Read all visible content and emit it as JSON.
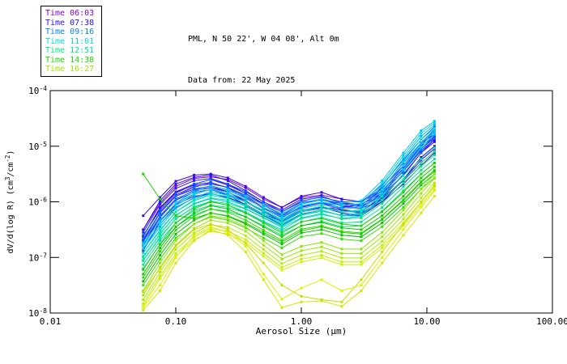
{
  "header": {
    "title_line1": "PML, N 50 22', W 04 08', Alt 0m",
    "title_line2": "Data from: 22 May 2025"
  },
  "legend": {
    "items": [
      {
        "label": "Time 06:03",
        "color": "#8A00C8"
      },
      {
        "label": "Time 07:38",
        "color": "#2A10F0"
      },
      {
        "label": "Time 09:16",
        "color": "#0080FF"
      },
      {
        "label": "Time 11:01",
        "color": "#00D8DC"
      },
      {
        "label": "Time 12:51",
        "color": "#00E88C"
      },
      {
        "label": "Time 14:38",
        "color": "#1ED400"
      },
      {
        "label": "Time 16:27",
        "color": "#9AE800"
      }
    ]
  },
  "chart_data": {
    "type": "line",
    "title": "PML, N 50 22', W 04 08', Alt 0m",
    "subtitle": "Data from: 22 May 2025",
    "xlabel": "Aerosol Size (μm)",
    "ylabel": "dV/d(log R) (cm3/cm-2)",
    "ylabel_parts": [
      {
        "t": "dV/d(log R) (cm"
      },
      {
        "sup": "3"
      },
      {
        "t": "/cm"
      },
      {
        "sup": "-2"
      },
      {
        "t": ")"
      }
    ],
    "x_scale": "log",
    "y_scale": "log",
    "xlim": [
      0.01,
      100.0
    ],
    "ylim": [
      1e-08,
      0.0001
    ],
    "grid": false,
    "legend_position": "top-left",
    "x_ticks": [
      {
        "v": 0.01,
        "label": "0.01"
      },
      {
        "v": 0.1,
        "label": "0.10"
      },
      {
        "v": 1.0,
        "label": "1.00"
      },
      {
        "v": 10.0,
        "label": "10.00"
      },
      {
        "v": 100.0,
        "label": "100.00"
      }
    ],
    "y_tick_exponents": [
      -4,
      -5,
      -6,
      -7,
      -8
    ],
    "x": [
      0.055,
      0.075,
      0.1,
      0.14,
      0.19,
      0.26,
      0.36,
      0.5,
      0.7,
      1.0,
      1.45,
      2.1,
      3.0,
      4.4,
      6.5,
      9.0,
      11.5
    ],
    "series": [
      {
        "time": "06:03",
        "color": "#8A00C8",
        "log10y": [
          -6.5,
          -6.02,
          -5.72,
          -5.58,
          -5.55,
          -5.6,
          -5.75,
          -5.95,
          -6.1,
          -5.92,
          -5.88,
          -5.95,
          -6.0,
          -5.8,
          -5.45,
          -5.05,
          -4.82
        ]
      },
      {
        "time": "06:03",
        "color": "#7A00B8",
        "log10y": [
          -6.62,
          -6.1,
          -5.82,
          -5.68,
          -5.6,
          -5.7,
          -5.85,
          -6.03,
          -6.18,
          -6.0,
          -5.97,
          -6.03,
          -6.08,
          -5.88,
          -5.52,
          -5.12,
          -4.88
        ]
      },
      {
        "time": "06:03",
        "color": "#9000D0",
        "log10y": [
          -6.7,
          -6.18,
          -5.88,
          -5.72,
          -5.68,
          -5.74,
          -5.9,
          -6.1,
          -6.25,
          -6.08,
          -6.02,
          -6.06,
          -6.12,
          -5.95,
          -5.6,
          -5.25,
          -5.05
        ]
      },
      {
        "time": "06:03",
        "color": "#6A00C0",
        "log10y": [
          -6.78,
          -6.25,
          -5.95,
          -5.8,
          -5.75,
          -5.82,
          -5.98,
          -6.18,
          -6.32,
          -6.15,
          -6.1,
          -6.15,
          -6.2,
          -6.0,
          -5.68,
          -5.35,
          -5.12
        ]
      },
      {
        "time": "06:03",
        "color": "#5B00D6",
        "log10y": [
          -6.88,
          -6.35,
          -6.05,
          -5.9,
          -5.85,
          -5.92,
          -6.05,
          -6.22,
          -6.35,
          -6.18,
          -6.12,
          -6.1,
          -6.05,
          -5.85,
          -5.45,
          -5.08,
          -4.88
        ]
      },
      {
        "time": "07:38",
        "color": "#3508F0",
        "log10y": [
          -6.25,
          -5.92,
          -5.63,
          -5.52,
          -5.5,
          -5.57,
          -5.72,
          -5.92,
          -6.1,
          -5.9,
          -5.83,
          -5.95,
          -6.0,
          -5.75,
          -5.35,
          -4.95,
          -4.78
        ]
      },
      {
        "time": "07:38",
        "color": "#2A10F5",
        "log10y": [
          -6.5,
          -5.98,
          -5.68,
          -5.56,
          -5.52,
          -5.62,
          -5.8,
          -6.0,
          -6.15,
          -5.95,
          -5.9,
          -6.02,
          -6.05,
          -5.8,
          -5.4,
          -5.0,
          -4.82
        ]
      },
      {
        "time": "07:38",
        "color": "#1E22FA",
        "log10y": [
          -6.55,
          -6.05,
          -5.76,
          -5.62,
          -5.58,
          -5.68,
          -5.85,
          -6.05,
          -6.22,
          -6.02,
          -5.95,
          -6.08,
          -6.12,
          -5.85,
          -5.45,
          -5.05,
          -4.85
        ]
      },
      {
        "time": "07:38",
        "color": "#3A00E6",
        "log10y": [
          -6.62,
          -6.12,
          -5.83,
          -5.7,
          -5.65,
          -5.75,
          -5.92,
          -6.12,
          -6.28,
          -6.1,
          -6.02,
          -6.14,
          -6.18,
          -5.92,
          -5.52,
          -5.12,
          -4.92
        ]
      },
      {
        "time": "07:38",
        "color": "#2C0AEB",
        "log10y": [
          -6.7,
          -6.2,
          -5.9,
          -5.77,
          -5.72,
          -5.82,
          -6.0,
          -6.18,
          -6.35,
          -6.16,
          -6.1,
          -6.2,
          -6.25,
          -6.0,
          -5.6,
          -5.2,
          -5.0
        ]
      },
      {
        "time": "07:38",
        "color": "#1430F8",
        "log10y": [
          -6.78,
          -6.28,
          -5.97,
          -5.83,
          -5.78,
          -5.88,
          -6.05,
          -6.25,
          -6.4,
          -6.22,
          -6.15,
          -6.25,
          -6.22,
          -5.95,
          -5.62,
          -5.3,
          -5.1
        ]
      },
      {
        "time": "09:16",
        "color": "#0060FF",
        "log10y": [
          -6.6,
          -6.15,
          -5.85,
          -5.68,
          -5.6,
          -5.68,
          -5.82,
          -6.0,
          -6.18,
          -5.98,
          -5.92,
          -6.0,
          -6.0,
          -5.7,
          -5.25,
          -4.88,
          -4.65
        ]
      },
      {
        "time": "09:16",
        "color": "#0070FF",
        "log10y": [
          -6.66,
          -6.2,
          -5.9,
          -5.74,
          -5.66,
          -5.74,
          -5.88,
          -6.06,
          -6.24,
          -6.04,
          -5.96,
          -6.06,
          -6.06,
          -5.76,
          -5.3,
          -4.94,
          -4.7
        ]
      },
      {
        "time": "09:16",
        "color": "#0080FF",
        "log10y": [
          -6.72,
          -6.26,
          -5.96,
          -5.79,
          -5.71,
          -5.79,
          -5.93,
          -6.11,
          -6.29,
          -6.09,
          -6.01,
          -6.11,
          -6.11,
          -5.81,
          -5.36,
          -4.99,
          -4.73
        ]
      },
      {
        "time": "09:16",
        "color": "#0090FF",
        "log10y": [
          -6.78,
          -6.33,
          -6.03,
          -5.86,
          -5.78,
          -5.86,
          -6.0,
          -6.18,
          -6.36,
          -6.16,
          -6.08,
          -6.18,
          -6.18,
          -5.88,
          -5.44,
          -5.06,
          -4.8
        ]
      },
      {
        "time": "09:16",
        "color": "#0668F2",
        "log10y": [
          -6.85,
          -6.4,
          -6.1,
          -5.93,
          -5.85,
          -5.93,
          -6.08,
          -6.25,
          -6.42,
          -6.23,
          -6.15,
          -6.25,
          -6.25,
          -5.95,
          -5.5,
          -5.12,
          -4.86
        ]
      },
      {
        "time": "11:01",
        "color": "#00C8F0",
        "log10y": [
          -6.75,
          -6.35,
          -6.02,
          -5.82,
          -5.72,
          -5.78,
          -5.9,
          -6.05,
          -6.22,
          -6.02,
          -5.95,
          -6.02,
          -5.98,
          -5.62,
          -5.12,
          -4.72,
          -4.55
        ]
      },
      {
        "time": "11:01",
        "color": "#00D4E8",
        "log10y": [
          -6.8,
          -6.4,
          -6.07,
          -5.87,
          -5.77,
          -5.83,
          -5.95,
          -6.1,
          -6.27,
          -6.07,
          -6.0,
          -6.07,
          -6.03,
          -5.67,
          -5.17,
          -4.77,
          -4.58
        ]
      },
      {
        "time": "11:01",
        "color": "#00B8F2",
        "log10y": [
          -6.85,
          -6.45,
          -6.12,
          -5.92,
          -5.82,
          -5.88,
          -6.0,
          -6.15,
          -6.32,
          -6.12,
          -6.05,
          -6.12,
          -6.08,
          -5.72,
          -5.22,
          -4.82,
          -4.62
        ]
      },
      {
        "time": "11:01",
        "color": "#00DCDC",
        "log10y": [
          -6.92,
          -6.52,
          -6.18,
          -5.98,
          -5.88,
          -5.94,
          -6.06,
          -6.22,
          -6.38,
          -6.18,
          -6.11,
          -6.18,
          -6.14,
          -5.78,
          -5.28,
          -4.88,
          -4.68
        ]
      },
      {
        "time": "11:01",
        "color": "#08C0EE",
        "log10y": [
          -6.98,
          -6.58,
          -6.24,
          -6.04,
          -5.94,
          -6.0,
          -6.12,
          -6.28,
          -6.44,
          -6.24,
          -6.17,
          -6.24,
          -6.2,
          -5.84,
          -5.35,
          -4.95,
          -4.72
        ]
      },
      {
        "time": "11:01",
        "color": "#00CCE6",
        "log10y": [
          -7.05,
          -6.65,
          -6.3,
          -6.1,
          -6.0,
          -6.06,
          -6.18,
          -6.35,
          -6.5,
          -6.3,
          -6.23,
          -6.3,
          -6.26,
          -5.9,
          -5.42,
          -5.02,
          -4.78
        ]
      },
      {
        "time": "12:51",
        "color": "#00E6A0",
        "log10y": [
          -6.92,
          -6.5,
          -6.18,
          -5.96,
          -5.86,
          -5.9,
          -6.0,
          -6.16,
          -6.33,
          -6.16,
          -6.08,
          -6.18,
          -6.16,
          -5.9,
          -5.53,
          -5.23,
          -5.03
        ]
      },
      {
        "time": "12:51",
        "color": "#00E88C",
        "log10y": [
          -7.0,
          -6.57,
          -6.25,
          -6.03,
          -5.93,
          -5.97,
          -6.07,
          -6.23,
          -6.4,
          -6.23,
          -6.15,
          -6.25,
          -6.23,
          -5.97,
          -5.6,
          -5.3,
          -5.1
        ]
      },
      {
        "time": "12:51",
        "color": "#00EA78",
        "log10y": [
          -7.06,
          -6.63,
          -6.31,
          -6.09,
          -5.99,
          -6.03,
          -6.13,
          -6.29,
          -6.46,
          -6.29,
          -6.21,
          -6.31,
          -6.29,
          -6.03,
          -5.66,
          -5.36,
          -5.16
        ]
      },
      {
        "time": "12:51",
        "color": "#06DE96",
        "log10y": [
          -7.13,
          -6.7,
          -6.38,
          -6.16,
          -6.06,
          -6.1,
          -6.2,
          -6.36,
          -6.53,
          -6.36,
          -6.28,
          -6.38,
          -6.36,
          -6.1,
          -5.73,
          -5.43,
          -5.23
        ]
      },
      {
        "time": "12:51",
        "color": "#00E070",
        "log10y": [
          -7.2,
          -6.77,
          -6.45,
          -6.23,
          -6.13,
          -6.17,
          -6.27,
          -6.43,
          -6.6,
          -6.43,
          -6.35,
          -6.45,
          -6.43,
          -6.17,
          -5.8,
          -5.5,
          -5.3
        ]
      },
      {
        "time": "14:38",
        "color": "#1ED400",
        "log10y": [
          -7.22,
          -6.76,
          -6.38,
          -6.13,
          -6.0,
          -6.06,
          -6.2,
          -6.38,
          -6.56,
          -6.36,
          -6.3,
          -6.4,
          -6.43,
          -6.18,
          -5.83,
          -5.5,
          -5.3
        ]
      },
      {
        "time": "14:38",
        "color": "#12C800",
        "log10y": [
          -7.3,
          -6.83,
          -6.45,
          -6.2,
          -6.07,
          -6.13,
          -6.27,
          -6.45,
          -6.63,
          -6.43,
          -6.37,
          -6.47,
          -6.5,
          -6.25,
          -5.9,
          -5.57,
          -5.37
        ]
      },
      {
        "time": "14:38",
        "color": "#2ADC00",
        "log10y": [
          -7.36,
          -6.89,
          -6.51,
          -6.26,
          -6.13,
          -6.19,
          -6.33,
          -6.51,
          -6.69,
          -6.49,
          -6.43,
          -6.53,
          -6.56,
          -6.31,
          -5.96,
          -5.63,
          -5.43
        ]
      },
      {
        "time": "14:38",
        "color": "#08BE06",
        "log10y": [
          -7.43,
          -6.96,
          -6.58,
          -6.33,
          -6.2,
          -6.26,
          -6.4,
          -6.58,
          -6.76,
          -6.56,
          -6.5,
          -6.6,
          -6.63,
          -6.38,
          -6.03,
          -5.7,
          -5.5
        ]
      },
      {
        "time": "14:38",
        "color": "#36E000",
        "log10y": [
          -7.5,
          -7.03,
          -6.65,
          -6.4,
          -6.27,
          -6.33,
          -6.47,
          -6.65,
          -6.83,
          -6.63,
          -6.57,
          -6.67,
          -6.7,
          -6.45,
          -6.1,
          -5.77,
          -5.57
        ]
      },
      {
        "time": "14:38",
        "color": "#20CC00",
        "log10y": [
          -5.5,
          -5.95,
          -6.25,
          -6.3,
          -6.2,
          -6.25,
          -6.38,
          -6.55,
          -6.72,
          -6.52,
          -6.45,
          -6.55,
          -6.58,
          -6.32,
          -5.98,
          -5.65,
          -5.45
        ]
      },
      {
        "time": "16:27",
        "color": "#8CE600",
        "log10y": [
          -7.6,
          -7.1,
          -6.7,
          -6.4,
          -6.25,
          -6.3,
          -6.45,
          -6.7,
          -6.95,
          -6.8,
          -6.73,
          -6.85,
          -6.85,
          -6.55,
          -6.15,
          -5.77,
          -5.5
        ]
      },
      {
        "time": "16:27",
        "color": "#9AE800",
        "log10y": [
          -7.68,
          -7.18,
          -6.78,
          -6.48,
          -6.33,
          -6.38,
          -6.53,
          -6.78,
          -7.03,
          -6.88,
          -6.81,
          -6.93,
          -6.93,
          -6.63,
          -6.23,
          -5.85,
          -5.58
        ]
      },
      {
        "time": "16:27",
        "color": "#ACEC00",
        "log10y": [
          -7.76,
          -7.26,
          -6.86,
          -6.56,
          -6.41,
          -6.46,
          -6.61,
          -6.86,
          -7.11,
          -6.96,
          -6.89,
          -7.01,
          -7.01,
          -6.71,
          -6.31,
          -5.93,
          -5.66
        ]
      },
      {
        "time": "16:27",
        "color": "#C0EE00",
        "log10y": [
          -7.83,
          -7.33,
          -6.93,
          -6.63,
          -6.48,
          -6.53,
          -6.68,
          -6.93,
          -7.18,
          -7.03,
          -6.96,
          -7.08,
          -7.08,
          -6.78,
          -6.38,
          -6.0,
          -5.73
        ]
      },
      {
        "time": "16:27",
        "color": "#D2F000",
        "log10y": [
          -7.88,
          -7.38,
          -6.98,
          -6.68,
          -6.53,
          -6.58,
          -6.73,
          -6.98,
          -7.23,
          -7.08,
          -7.01,
          -7.13,
          -7.13,
          -6.83,
          -6.43,
          -6.05,
          -5.78
        ]
      },
      {
        "time": "16:27",
        "color": "#E2EE00",
        "log10y": [
          -7.9,
          -7.5,
          -7.0,
          -6.6,
          -6.45,
          -6.55,
          -6.8,
          -7.3,
          -7.75,
          -7.55,
          -7.4,
          -7.6,
          -7.5,
          -7.0,
          -6.5,
          -6.1,
          -5.8
        ]
      },
      {
        "time": "16:27",
        "color": "#D8E400",
        "log10y": [
          -7.95,
          -7.6,
          -7.1,
          -6.7,
          -6.5,
          -6.6,
          -6.9,
          -7.4,
          -7.9,
          -7.8,
          -7.78,
          -7.88,
          -7.6,
          -7.1,
          -6.6,
          -6.2,
          -5.9
        ]
      },
      {
        "time": "16:27",
        "color": "#CCDC00",
        "log10y": [
          -7.62,
          -7.2,
          -6.8,
          -6.5,
          -6.4,
          -6.5,
          -6.75,
          -7.1,
          -7.5,
          -7.7,
          -7.76,
          -7.8,
          -7.4,
          -6.9,
          -6.4,
          -6.0,
          -5.7
        ]
      }
    ]
  }
}
